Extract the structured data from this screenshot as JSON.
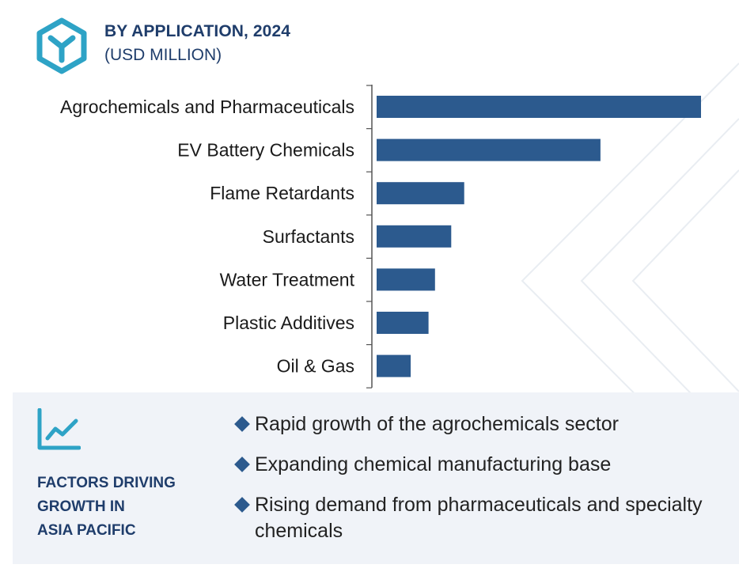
{
  "header": {
    "title": "BY APPLICATION, 2024",
    "subtitle": "(USD MILLION)",
    "logo_icon": "hexagon-y-logo-icon"
  },
  "colors": {
    "bar": "#2c5a8e",
    "title": "#1f3d6b",
    "panel_bg": "#f0f3f8",
    "logo": "#2ea3c6"
  },
  "chart_data": {
    "type": "bar",
    "orientation": "horizontal",
    "title": "BY APPLICATION, 2024",
    "subtitle": "(USD MILLION)",
    "categories": [
      "Agrochemicals and Pharmaceuticals",
      "EV Battery Chemicals",
      "Flame Retardants",
      "Surfactants",
      "Water Treatment",
      "Plastic Additives",
      "Oil & Gas"
    ],
    "values": [
      100,
      69,
      27,
      23,
      18,
      16,
      10.5
    ],
    "xlim": [
      0,
      100
    ],
    "grid": false,
    "value_labels_shown": false
  },
  "factors": {
    "icon": "trend-line-chart-icon",
    "title_lines": [
      "FACTORS DRIVING",
      "GROWTH IN",
      "ASIA PACIFIC"
    ],
    "items": [
      "Rapid growth of the agrochemicals sector",
      "Expanding chemical manufacturing base",
      "Rising demand from pharmaceuticals and specialty chemicals"
    ]
  }
}
